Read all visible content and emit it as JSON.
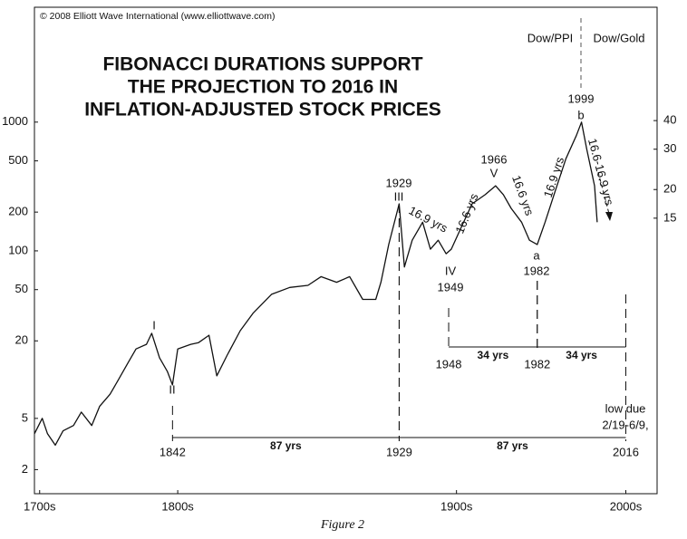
{
  "chart_data": {
    "type": "line",
    "copyright": "© 2008 Elliott Wave International (www.elliottwave.com)",
    "title": [
      "FIBONACCI DURATIONS SUPPORT",
      "THE PROJECTION TO 2016 IN",
      "INFLATION-ADJUSTED STOCK PRICES"
    ],
    "y2_label": "Dow/Gold",
    "log_scale": true,
    "xlim": [
      1789,
      2028
    ],
    "xticks": [
      {
        "value": 1791,
        "label": "1700s"
      },
      {
        "value": 1844,
        "label": "1800s"
      },
      {
        "value": 1951,
        "label": "1900s"
      },
      {
        "value": 2016,
        "label": "2000s"
      }
    ],
    "ylim": [
      1.3,
      7800
    ],
    "yticks": [
      2,
      5,
      20,
      50,
      100,
      200,
      500,
      1000
    ],
    "y2lim": [
      0.94,
      125
    ],
    "y2ticks": [
      15,
      20,
      30,
      40
    ],
    "x": [
      1789,
      1792,
      1794,
      1797,
      1800,
      1804,
      1807,
      1811,
      1814,
      1818,
      1821,
      1825,
      1828,
      1832,
      1834,
      1837,
      1840,
      1842,
      1844,
      1849,
      1852,
      1856,
      1859,
      1863,
      1868,
      1873,
      1880,
      1887,
      1894,
      1899,
      1905,
      1910,
      1915,
      1920,
      1922,
      1925,
      1929,
      1931,
      1934,
      1938,
      1941,
      1944,
      1947,
      1949,
      1953,
      1957,
      1962,
      1966,
      1969,
      1972,
      1976,
      1979,
      1982,
      1985,
      1989,
      1993,
      1997,
      1999,
      2001,
      2004,
      2005
    ],
    "series": [
      {
        "name": "Dow/PPI",
        "color": "#111111",
        "values": [
          3.8,
          5.0,
          3.8,
          3.1,
          4.0,
          4.4,
          5.6,
          4.4,
          6.2,
          7.7,
          9.8,
          13.6,
          17.3,
          18.8,
          22.9,
          14.8,
          11.6,
          9.1,
          17.3,
          18.8,
          19.4,
          22.1,
          10.7,
          15.5,
          24,
          33,
          46,
          52,
          54,
          63,
          57,
          63,
          42,
          42,
          57,
          112,
          232,
          75,
          121,
          167,
          103,
          121,
          95,
          103,
          155,
          232,
          273,
          320,
          273,
          214,
          167,
          121,
          112,
          167,
          296,
          520,
          785,
          1000,
          615,
          320,
          167
        ]
      }
    ],
    "annotations": [
      "I",
      "II",
      "1929",
      "III",
      "IV",
      "1949",
      "1966",
      "V",
      "a",
      "1982",
      "1999",
      "b",
      "16.9 yrs",
      "16.6 yrs",
      "16.6 yrs",
      "16.9 yrs",
      "16.6-16.9 yrs",
      "low due",
      "2/19-6/9,"
    ],
    "cycles": [
      {
        "start": 1842,
        "end": 1929,
        "label": "87 yrs"
      },
      {
        "start": 1929,
        "end": 2016,
        "label": "87 yrs"
      },
      {
        "start": 1948,
        "end": 1982,
        "label": "34 yrs"
      },
      {
        "start": 1982,
        "end": 2016,
        "label": "34 yrs"
      }
    ],
    "caption": "Figure 2"
  }
}
